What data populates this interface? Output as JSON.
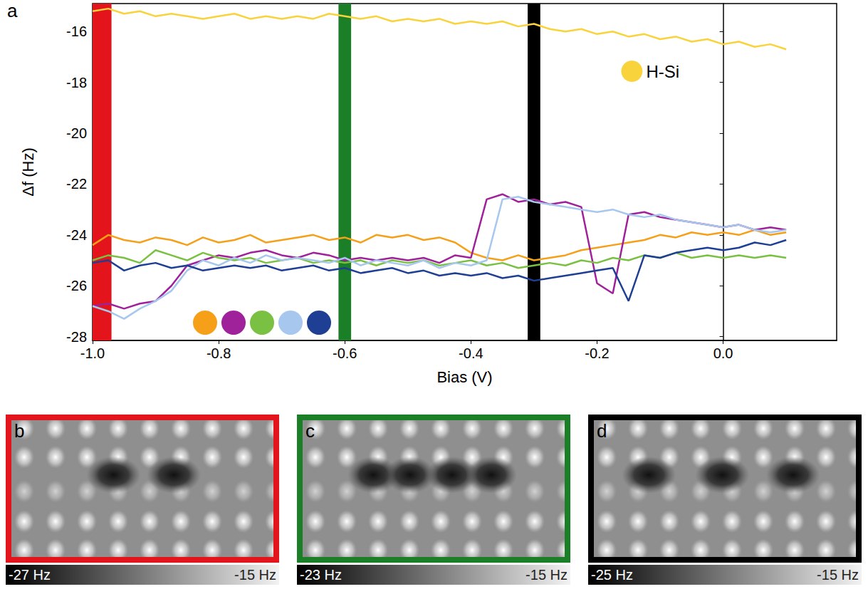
{
  "chart_data": {
    "type": "line",
    "panel_label": "a",
    "x_label": "Bias (V)",
    "y_label": "Δf (Hz)",
    "xlim": [
      -1.0,
      0.18
    ],
    "xticks": [
      {
        "value": -1.0,
        "label": "-1.0"
      },
      -0.8,
      -0.6,
      -0.4,
      -0.2,
      {
        "value": 0.0,
        "label": "0.0"
      }
    ],
    "ylim": [
      -28.15,
      -14.9
    ],
    "yticks": [
      -28,
      -26,
      -24,
      -22,
      -20,
      -18,
      -16
    ],
    "grid": false,
    "legend": "upper right",
    "marker": "none",
    "line_style": "solid",
    "bands": [
      {
        "x": [
          -1.0,
          -0.97
        ],
        "color": "#e3141b"
      },
      {
        "x": [
          -0.61,
          -0.59
        ],
        "color": "#1a7f26"
      },
      {
        "x": [
          -0.31,
          -0.29
        ],
        "color": "#000000"
      }
    ],
    "x": [
      -1.0,
      -0.975,
      -0.95,
      -0.925,
      -0.9,
      -0.875,
      -0.85,
      -0.825,
      -0.8,
      -0.775,
      -0.75,
      -0.725,
      -0.7,
      -0.675,
      -0.65,
      -0.625,
      -0.6,
      -0.575,
      -0.55,
      -0.525,
      -0.5,
      -0.475,
      -0.45,
      -0.425,
      -0.4,
      -0.375,
      -0.35,
      -0.325,
      -0.3,
      -0.275,
      -0.25,
      -0.225,
      -0.2,
      -0.175,
      -0.15,
      -0.125,
      -0.1,
      -0.075,
      -0.05,
      -0.025,
      0.0,
      0.025,
      0.05,
      0.075,
      0.1
    ],
    "series": [
      {
        "name": "H-Si",
        "color": "#f9d33c",
        "values": [
          -15.2,
          -15.1,
          -15.3,
          -15.2,
          -15.4,
          -15.3,
          -15.4,
          -15.5,
          -15.4,
          -15.3,
          -15.5,
          -15.4,
          -15.5,
          -15.4,
          -15.5,
          -15.3,
          -15.4,
          -15.5,
          -15.4,
          -15.6,
          -15.5,
          -15.6,
          -15.5,
          -15.7,
          -15.6,
          -15.7,
          -15.6,
          -15.8,
          -15.7,
          -15.9,
          -16.0,
          -15.9,
          -16.1,
          -16.0,
          -16.2,
          -16.1,
          -16.3,
          -16.2,
          -16.4,
          -16.3,
          -16.5,
          -16.4,
          -16.6,
          -16.5,
          -16.7
        ]
      },
      {
        "color": "#f6a01a",
        "values": [
          -24.4,
          -24.0,
          -24.2,
          -24.3,
          -24.1,
          -24.2,
          -24.4,
          -24.1,
          -24.3,
          -24.2,
          -24.0,
          -24.3,
          -24.2,
          -24.1,
          -24.0,
          -24.2,
          -24.1,
          -24.3,
          -24.0,
          -24.1,
          -24.0,
          -24.2,
          -24.1,
          -24.3,
          -24.7,
          -24.9,
          -25.0,
          -24.8,
          -25.0,
          -24.9,
          -24.8,
          -24.6,
          -24.5,
          -24.4,
          -24.3,
          -24.2,
          -24.0,
          -24.1,
          -23.9,
          -24.0,
          -23.9,
          -24.0,
          -23.8,
          -24.0,
          -23.9
        ]
      },
      {
        "color": "#a0229b",
        "values": [
          -26.8,
          -26.7,
          -26.9,
          -26.7,
          -26.6,
          -26.0,
          -25.2,
          -25.0,
          -24.8,
          -24.9,
          -24.7,
          -24.6,
          -24.8,
          -24.9,
          -24.7,
          -24.8,
          -25.0,
          -24.9,
          -25.0,
          -24.9,
          -25.0,
          -24.9,
          -25.1,
          -24.8,
          -24.9,
          -22.6,
          -22.4,
          -22.7,
          -22.6,
          -22.8,
          -22.7,
          -22.9,
          -25.9,
          -26.3,
          -23.2,
          -23.1,
          -23.3,
          -23.4,
          -23.5,
          -23.6,
          -23.7,
          -23.6,
          -23.8,
          -23.7,
          -23.8
        ]
      },
      {
        "color": "#7ac143",
        "values": [
          -25.0,
          -24.8,
          -24.9,
          -25.1,
          -24.6,
          -24.8,
          -25.0,
          -24.7,
          -24.9,
          -25.0,
          -24.9,
          -25.1,
          -25.0,
          -24.9,
          -25.1,
          -25.0,
          -25.1,
          -25.0,
          -25.2,
          -25.0,
          -25.1,
          -25.0,
          -25.2,
          -25.1,
          -25.0,
          -25.2,
          -25.1,
          -25.3,
          -25.2,
          -25.1,
          -25.2,
          -25.0,
          -25.1,
          -24.9,
          -25.0,
          -24.8,
          -24.9,
          -24.7,
          -24.9,
          -24.8,
          -24.9,
          -24.8,
          -24.9,
          -24.8,
          -24.9
        ]
      },
      {
        "color": "#a7c7ef",
        "values": [
          -26.8,
          -27.0,
          -27.3,
          -26.9,
          -26.6,
          -26.2,
          -25.4,
          -25.0,
          -25.2,
          -24.9,
          -25.1,
          -24.8,
          -25.0,
          -24.9,
          -25.0,
          -25.1,
          -24.9,
          -25.2,
          -25.0,
          -25.1,
          -25.2,
          -25.0,
          -25.3,
          -25.1,
          -25.2,
          -25.0,
          -22.6,
          -22.5,
          -22.7,
          -22.8,
          -22.9,
          -23.0,
          -23.1,
          -23.0,
          -23.2,
          -23.3,
          -23.2,
          -23.4,
          -23.5,
          -23.6,
          -23.7,
          -23.6,
          -23.8,
          -23.9,
          -23.8
        ]
      },
      {
        "color": "#1f3f95",
        "values": [
          -25.1,
          -25.0,
          -25.4,
          -25.2,
          -25.1,
          -25.3,
          -25.2,
          -25.4,
          -25.3,
          -25.2,
          -25.3,
          -25.2,
          -25.4,
          -25.3,
          -25.2,
          -25.4,
          -25.3,
          -25.5,
          -25.4,
          -25.3,
          -25.5,
          -25.4,
          -25.6,
          -25.5,
          -25.6,
          -25.5,
          -25.7,
          -25.6,
          -25.8,
          -25.7,
          -25.6,
          -25.5,
          -25.4,
          -25.3,
          -26.6,
          -24.8,
          -24.9,
          -24.7,
          -24.6,
          -24.5,
          -24.6,
          -24.5,
          -24.3,
          -24.4,
          -24.2
        ]
      }
    ]
  },
  "panels": [
    {
      "label": "b",
      "color": "#e3141b",
      "colorbar": [
        {
          "value": -27,
          "label": "-27 Hz"
        },
        {
          "value": -15,
          "label": "-15 Hz"
        }
      ],
      "dark_spots": [
        0.39,
        0.62
      ]
    },
    {
      "label": "c",
      "color": "#1a7f26",
      "colorbar": [
        {
          "value": -23,
          "label": "-23 Hz"
        },
        {
          "value": -15,
          "label": "-15 Hz"
        }
      ],
      "dark_spots": [
        0.27,
        0.41,
        0.57,
        0.72
      ]
    },
    {
      "label": "d",
      "color": "#000000",
      "colorbar": [
        {
          "value": -25,
          "label": "-25 Hz"
        },
        {
          "value": -15,
          "label": "-15 Hz"
        }
      ],
      "dark_spots": [
        0.21,
        0.49,
        0.76
      ]
    }
  ]
}
